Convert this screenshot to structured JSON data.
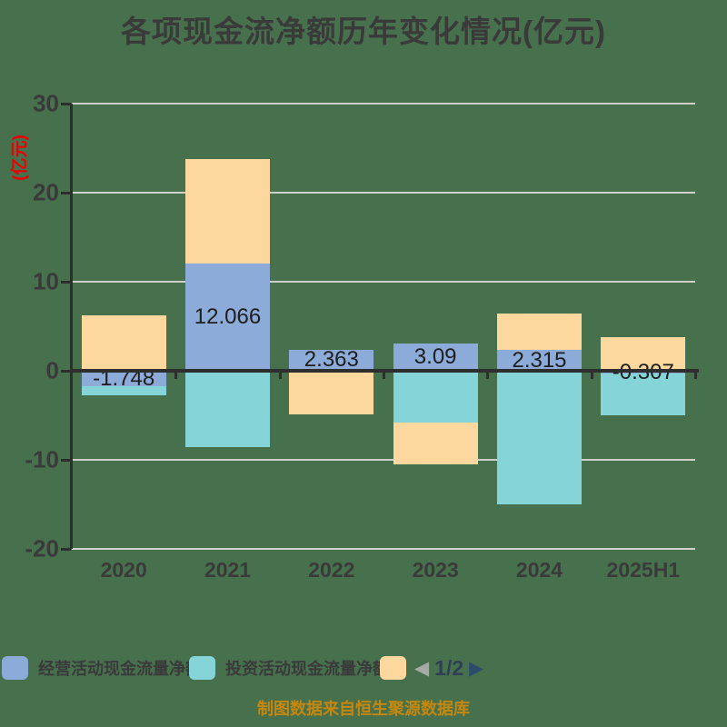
{
  "title": {
    "text": "各项现金流净额历年变化情况(亿元)"
  },
  "y_axis_unit": "(亿元)",
  "footer": {
    "text": "制图数据来自恒生聚源数据库"
  },
  "legend": {
    "pager": {
      "prev": "◀",
      "label": "1/2",
      "next": "▶"
    }
  },
  "colors": {
    "background": "#47704D",
    "operating_series": "#8CABD9",
    "investing_series": "#85D5D8",
    "third_series": "#FCD89E",
    "axis": "#2E2E2E",
    "gridline": "#CDD1CA",
    "tick_text": "#3A3A3A",
    "unit_label_red": "#EB0000",
    "footer_gold": "#C5870E"
  },
  "chart_data": {
    "type": "bar",
    "mode": "grouped-overlay",
    "title": "各项现金流净额历年变化情况(亿元)",
    "ylabel": "(亿元)",
    "categories": [
      "2020",
      "2021",
      "2022",
      "2023",
      "2024",
      "2025H1"
    ],
    "yticks": [
      30,
      20,
      10,
      0,
      -10,
      -20
    ],
    "ylim": [
      -20,
      30
    ],
    "grid": true,
    "legend_position": "bottom",
    "series": [
      {
        "name": "经营活动现金流量净额",
        "color": "#8CABD9",
        "values": [
          -1.748,
          12.066,
          2.363,
          3.09,
          2.315,
          -0.307
        ],
        "value_labels": [
          "-1.748",
          "12.066",
          "2.363",
          "3.09",
          "2.315",
          "-0.307"
        ]
      },
      {
        "name": "投资活动现金流量净额",
        "color": "#85D5D8",
        "values": [
          -2.8,
          -8.6,
          -0.25,
          -5.8,
          -15.0,
          -5.0
        ]
      },
      {
        "name": "",
        "color": "#FCD89E",
        "values": [
          6.2,
          23.8,
          -4.9,
          -10.5,
          6.4,
          3.8
        ]
      }
    ]
  }
}
